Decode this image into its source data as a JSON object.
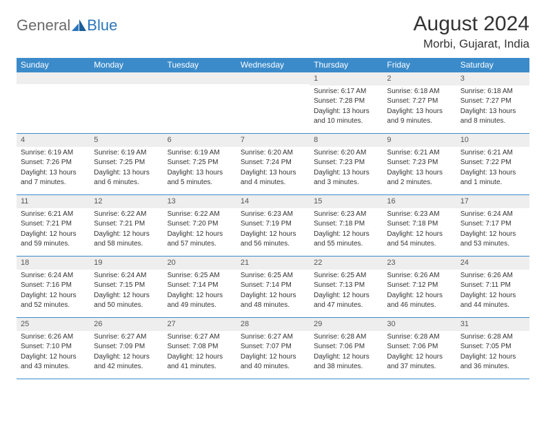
{
  "logo": {
    "text1": "General",
    "text2": "Blue"
  },
  "title": "August 2024",
  "location": "Morbi, Gujarat, India",
  "colors": {
    "header_bg": "#3b8bca",
    "header_text": "#ffffff",
    "daynum_bg": "#eeeeee",
    "border": "#3b8bca",
    "logo_gray": "#6a6a6a",
    "logo_blue": "#2a75bb"
  },
  "weekdays": [
    "Sunday",
    "Monday",
    "Tuesday",
    "Wednesday",
    "Thursday",
    "Friday",
    "Saturday"
  ],
  "weeks": [
    [
      {
        "n": "",
        "sr": "",
        "ss": "",
        "dl": ""
      },
      {
        "n": "",
        "sr": "",
        "ss": "",
        "dl": ""
      },
      {
        "n": "",
        "sr": "",
        "ss": "",
        "dl": ""
      },
      {
        "n": "",
        "sr": "",
        "ss": "",
        "dl": ""
      },
      {
        "n": "1",
        "sr": "Sunrise: 6:17 AM",
        "ss": "Sunset: 7:28 PM",
        "dl": "Daylight: 13 hours and 10 minutes."
      },
      {
        "n": "2",
        "sr": "Sunrise: 6:18 AM",
        "ss": "Sunset: 7:27 PM",
        "dl": "Daylight: 13 hours and 9 minutes."
      },
      {
        "n": "3",
        "sr": "Sunrise: 6:18 AM",
        "ss": "Sunset: 7:27 PM",
        "dl": "Daylight: 13 hours and 8 minutes."
      }
    ],
    [
      {
        "n": "4",
        "sr": "Sunrise: 6:19 AM",
        "ss": "Sunset: 7:26 PM",
        "dl": "Daylight: 13 hours and 7 minutes."
      },
      {
        "n": "5",
        "sr": "Sunrise: 6:19 AM",
        "ss": "Sunset: 7:25 PM",
        "dl": "Daylight: 13 hours and 6 minutes."
      },
      {
        "n": "6",
        "sr": "Sunrise: 6:19 AM",
        "ss": "Sunset: 7:25 PM",
        "dl": "Daylight: 13 hours and 5 minutes."
      },
      {
        "n": "7",
        "sr": "Sunrise: 6:20 AM",
        "ss": "Sunset: 7:24 PM",
        "dl": "Daylight: 13 hours and 4 minutes."
      },
      {
        "n": "8",
        "sr": "Sunrise: 6:20 AM",
        "ss": "Sunset: 7:23 PM",
        "dl": "Daylight: 13 hours and 3 minutes."
      },
      {
        "n": "9",
        "sr": "Sunrise: 6:21 AM",
        "ss": "Sunset: 7:23 PM",
        "dl": "Daylight: 13 hours and 2 minutes."
      },
      {
        "n": "10",
        "sr": "Sunrise: 6:21 AM",
        "ss": "Sunset: 7:22 PM",
        "dl": "Daylight: 13 hours and 1 minute."
      }
    ],
    [
      {
        "n": "11",
        "sr": "Sunrise: 6:21 AM",
        "ss": "Sunset: 7:21 PM",
        "dl": "Daylight: 12 hours and 59 minutes."
      },
      {
        "n": "12",
        "sr": "Sunrise: 6:22 AM",
        "ss": "Sunset: 7:21 PM",
        "dl": "Daylight: 12 hours and 58 minutes."
      },
      {
        "n": "13",
        "sr": "Sunrise: 6:22 AM",
        "ss": "Sunset: 7:20 PM",
        "dl": "Daylight: 12 hours and 57 minutes."
      },
      {
        "n": "14",
        "sr": "Sunrise: 6:23 AM",
        "ss": "Sunset: 7:19 PM",
        "dl": "Daylight: 12 hours and 56 minutes."
      },
      {
        "n": "15",
        "sr": "Sunrise: 6:23 AM",
        "ss": "Sunset: 7:18 PM",
        "dl": "Daylight: 12 hours and 55 minutes."
      },
      {
        "n": "16",
        "sr": "Sunrise: 6:23 AM",
        "ss": "Sunset: 7:18 PM",
        "dl": "Daylight: 12 hours and 54 minutes."
      },
      {
        "n": "17",
        "sr": "Sunrise: 6:24 AM",
        "ss": "Sunset: 7:17 PM",
        "dl": "Daylight: 12 hours and 53 minutes."
      }
    ],
    [
      {
        "n": "18",
        "sr": "Sunrise: 6:24 AM",
        "ss": "Sunset: 7:16 PM",
        "dl": "Daylight: 12 hours and 52 minutes."
      },
      {
        "n": "19",
        "sr": "Sunrise: 6:24 AM",
        "ss": "Sunset: 7:15 PM",
        "dl": "Daylight: 12 hours and 50 minutes."
      },
      {
        "n": "20",
        "sr": "Sunrise: 6:25 AM",
        "ss": "Sunset: 7:14 PM",
        "dl": "Daylight: 12 hours and 49 minutes."
      },
      {
        "n": "21",
        "sr": "Sunrise: 6:25 AM",
        "ss": "Sunset: 7:14 PM",
        "dl": "Daylight: 12 hours and 48 minutes."
      },
      {
        "n": "22",
        "sr": "Sunrise: 6:25 AM",
        "ss": "Sunset: 7:13 PM",
        "dl": "Daylight: 12 hours and 47 minutes."
      },
      {
        "n": "23",
        "sr": "Sunrise: 6:26 AM",
        "ss": "Sunset: 7:12 PM",
        "dl": "Daylight: 12 hours and 46 minutes."
      },
      {
        "n": "24",
        "sr": "Sunrise: 6:26 AM",
        "ss": "Sunset: 7:11 PM",
        "dl": "Daylight: 12 hours and 44 minutes."
      }
    ],
    [
      {
        "n": "25",
        "sr": "Sunrise: 6:26 AM",
        "ss": "Sunset: 7:10 PM",
        "dl": "Daylight: 12 hours and 43 minutes."
      },
      {
        "n": "26",
        "sr": "Sunrise: 6:27 AM",
        "ss": "Sunset: 7:09 PM",
        "dl": "Daylight: 12 hours and 42 minutes."
      },
      {
        "n": "27",
        "sr": "Sunrise: 6:27 AM",
        "ss": "Sunset: 7:08 PM",
        "dl": "Daylight: 12 hours and 41 minutes."
      },
      {
        "n": "28",
        "sr": "Sunrise: 6:27 AM",
        "ss": "Sunset: 7:07 PM",
        "dl": "Daylight: 12 hours and 40 minutes."
      },
      {
        "n": "29",
        "sr": "Sunrise: 6:28 AM",
        "ss": "Sunset: 7:06 PM",
        "dl": "Daylight: 12 hours and 38 minutes."
      },
      {
        "n": "30",
        "sr": "Sunrise: 6:28 AM",
        "ss": "Sunset: 7:06 PM",
        "dl": "Daylight: 12 hours and 37 minutes."
      },
      {
        "n": "31",
        "sr": "Sunrise: 6:28 AM",
        "ss": "Sunset: 7:05 PM",
        "dl": "Daylight: 12 hours and 36 minutes."
      }
    ]
  ]
}
